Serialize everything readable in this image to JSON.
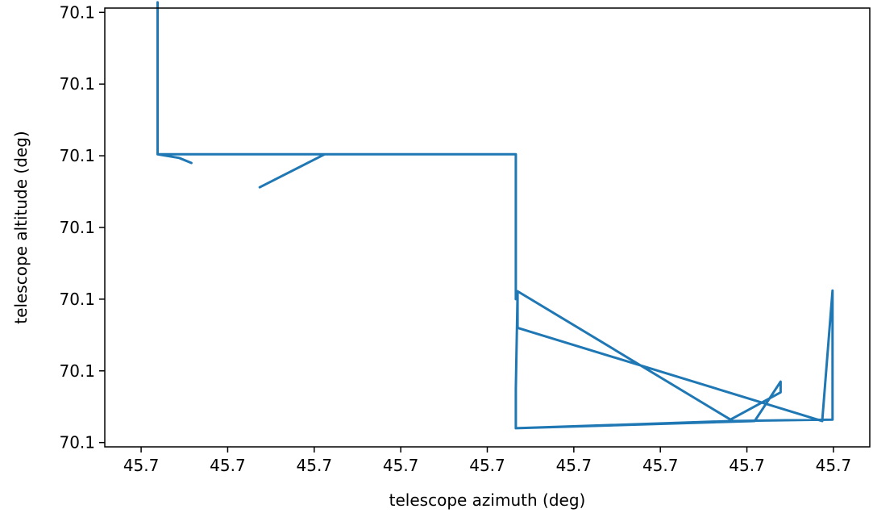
{
  "chart_data": {
    "type": "line",
    "title": "",
    "xlabel": "telescope azimuth (deg)",
    "ylabel": "telescope altitude (deg)",
    "xlim": [
      -0.42,
      8.42
    ],
    "ylim": [
      -0.06,
      6.06
    ],
    "x_ticks": [
      {
        "value": 0,
        "label": "45.7"
      },
      {
        "value": 1,
        "label": "45.7"
      },
      {
        "value": 2,
        "label": "45.7"
      },
      {
        "value": 3,
        "label": "45.7"
      },
      {
        "value": 4,
        "label": "45.7"
      },
      {
        "value": 5,
        "label": "45.7"
      },
      {
        "value": 6,
        "label": "45.7"
      },
      {
        "value": 7,
        "label": "45.7"
      },
      {
        "value": 8,
        "label": "45.7"
      }
    ],
    "y_ticks": [
      {
        "value": 0,
        "label": "70.1"
      },
      {
        "value": 1,
        "label": "70.1"
      },
      {
        "value": 2,
        "label": "70.1"
      },
      {
        "value": 3,
        "label": "70.1"
      },
      {
        "value": 4,
        "label": "70.1"
      },
      {
        "value": 5,
        "label": "70.1"
      },
      {
        "value": 6,
        "label": "70.1"
      }
    ],
    "grid": false,
    "color": "#1f77b4",
    "series": [
      {
        "x": [
          0.19,
          0.19,
          0.19,
          0.44,
          0.58,
          0.44,
          0.19,
          2.12,
          1.37,
          2.12,
          0.19,
          4.33,
          4.33,
          4.33,
          4.35,
          4.33,
          4.33,
          7.09,
          7.39,
          7.39,
          7.39,
          6.81,
          4.35,
          4.35,
          7.87,
          7.99,
          7.99,
          7.99,
          6.81,
          4.33
        ],
        "y": [
          6.14,
          5.0,
          4.02,
          3.97,
          3.9,
          3.97,
          4.02,
          4.02,
          3.56,
          4.02,
          4.02,
          4.02,
          3.4,
          2.0,
          2.1,
          0.75,
          0.2,
          0.3,
          0.85,
          0.85,
          0.7,
          0.32,
          2.11,
          1.6,
          0.3,
          2.12,
          1.1,
          0.32,
          0.3,
          0.2
        ]
      }
    ]
  }
}
